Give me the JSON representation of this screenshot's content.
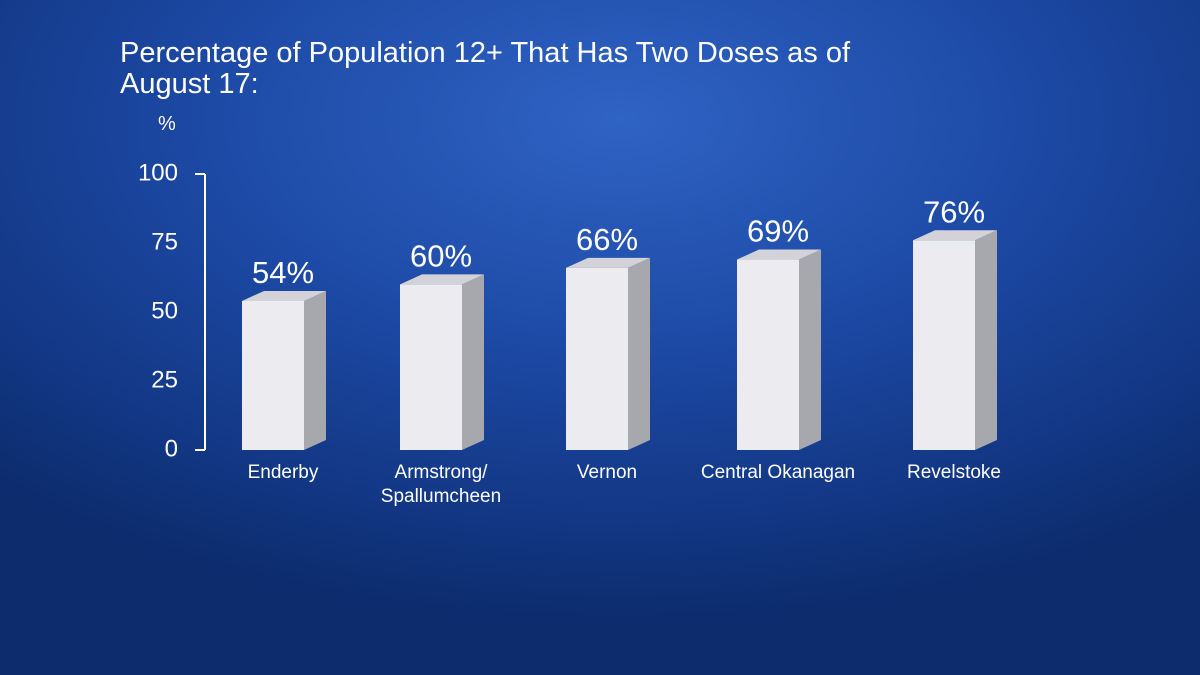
{
  "chart_data": {
    "type": "bar3d",
    "title": "Percentage of Population 12+ That Has Two Doses as of August 17:",
    "y_label": "%",
    "categories": [
      "Enderby",
      "Armstrong/\nSpallumcheen",
      "Vernon",
      "Central Okanagan",
      "Revelstoke"
    ],
    "values": [
      54,
      60,
      66,
      69,
      76
    ],
    "value_labels": [
      "54%",
      "60%",
      "66%",
      "69%",
      "76%"
    ],
    "color": "#ecebf0",
    "ylim": [
      0,
      100
    ],
    "yticks": [
      0,
      25,
      50,
      75,
      100
    ],
    "grid": false
  }
}
